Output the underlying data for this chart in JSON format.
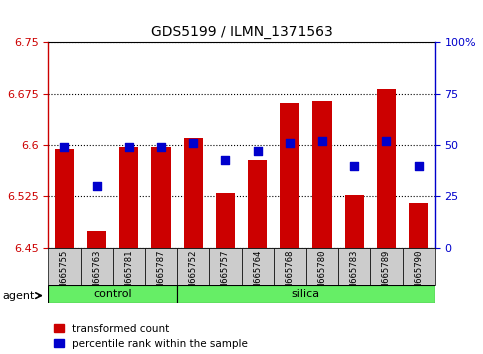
{
  "title": "GDS5199 / ILMN_1371563",
  "samples": [
    "GSM665755",
    "GSM665763",
    "GSM665781",
    "GSM665787",
    "GSM665752",
    "GSM665757",
    "GSM665764",
    "GSM665768",
    "GSM665780",
    "GSM665783",
    "GSM665789",
    "GSM665790"
  ],
  "red_values": [
    6.595,
    6.475,
    6.598,
    6.598,
    6.61,
    6.53,
    6.578,
    6.662,
    6.665,
    6.527,
    6.682,
    6.515
  ],
  "blue_values": [
    49,
    30,
    49,
    49,
    51,
    43,
    47,
    51,
    52,
    40,
    52,
    40
  ],
  "ymin": 6.45,
  "ymax": 6.75,
  "yticks": [
    6.45,
    6.525,
    6.6,
    6.675,
    6.75
  ],
  "ytick_labels": [
    "6.45",
    "6.525",
    "6.6",
    "6.675",
    "6.75"
  ],
  "y2min": 0,
  "y2max": 100,
  "y2ticks": [
    0,
    25,
    50,
    75,
    100
  ],
  "y2tick_labels": [
    "0",
    "25",
    "50",
    "75",
    "100%"
  ],
  "control_samples": 4,
  "silica_samples": 8,
  "control_label": "control",
  "silica_label": "silica",
  "agent_label": "agent",
  "legend_red": "transformed count",
  "legend_blue": "percentile rank within the sample",
  "bar_color": "#cc0000",
  "dot_color": "#0000cc",
  "green_bg": "#66ee66",
  "bar_width": 0.6,
  "dot_size": 30,
  "grid_color": "#000000",
  "background_color": "#ffffff",
  "xticklabel_bg": "#cccccc"
}
